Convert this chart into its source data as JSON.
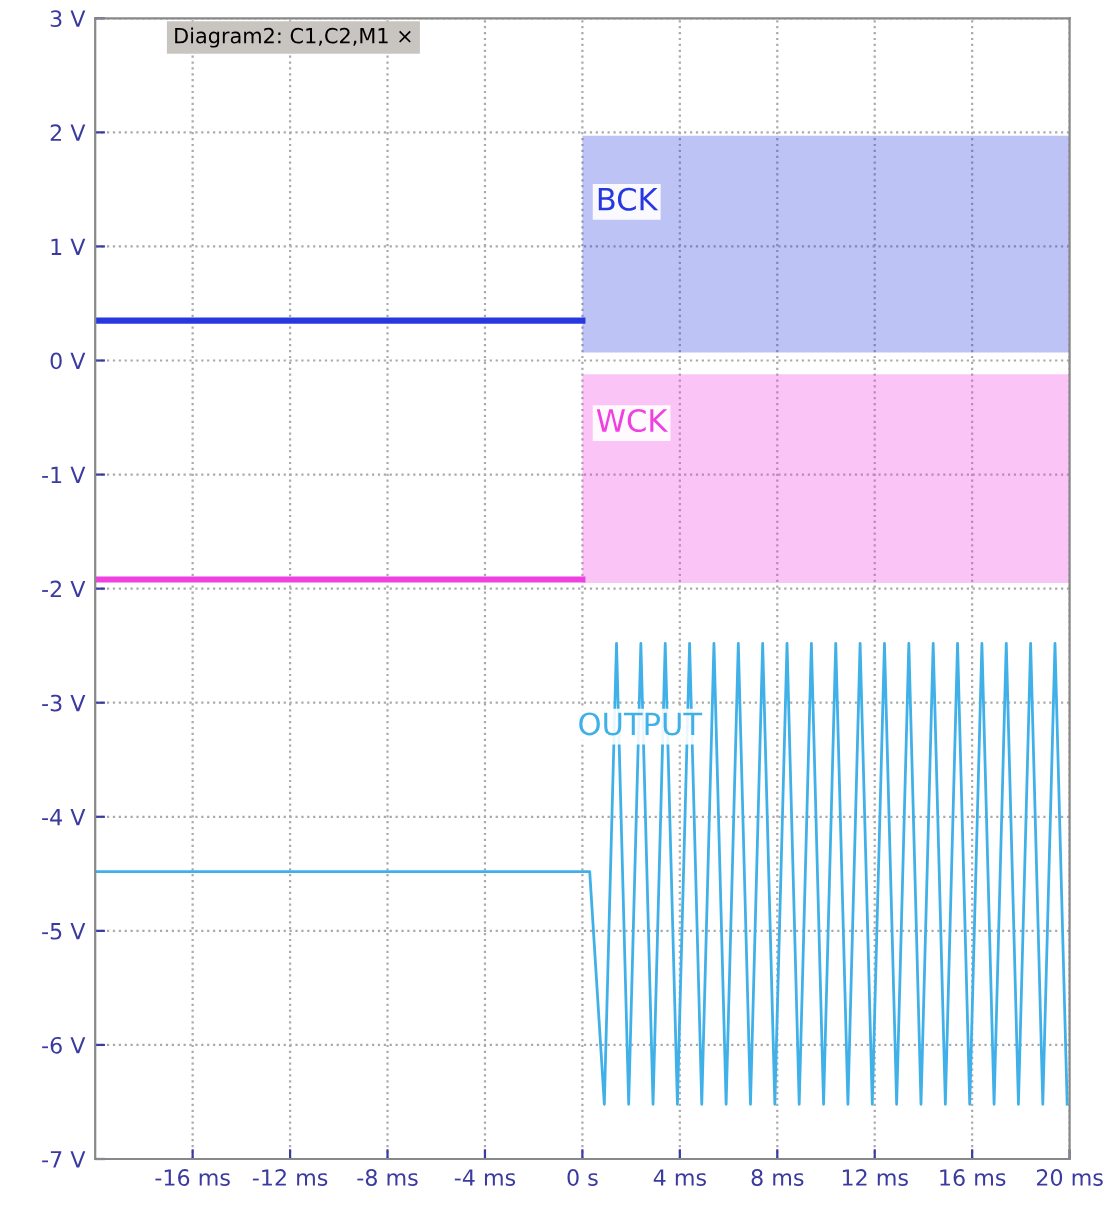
{
  "chart_data": {
    "type": "line",
    "annotations": [
      "Diagram2: C1,C2,M1 ×"
    ],
    "xlim": [
      -20,
      20
    ],
    "ylim": [
      -7,
      3
    ],
    "xticks": [
      {
        "value": -16,
        "label": "-16 ms"
      },
      {
        "value": -12,
        "label": "-12 ms"
      },
      {
        "value": -8,
        "label": "-8 ms"
      },
      {
        "value": -4,
        "label": "-4 ms"
      },
      {
        "value": 0,
        "label": "0 s"
      },
      {
        "value": 4,
        "label": "4 ms"
      },
      {
        "value": 8,
        "label": "8 ms"
      },
      {
        "value": 12,
        "label": "12 ms"
      },
      {
        "value": 16,
        "label": "16 ms"
      },
      {
        "value": 20,
        "label": "20 ms"
      }
    ],
    "yticks": [
      {
        "value": 3,
        "label": "3 V"
      },
      {
        "value": 2,
        "label": "2 V"
      },
      {
        "value": 1,
        "label": "1 V"
      },
      {
        "value": 0,
        "label": "0 V"
      },
      {
        "value": -1,
        "label": "-1 V"
      },
      {
        "value": -2,
        "label": "-2 V"
      },
      {
        "value": -3,
        "label": "-3 V"
      },
      {
        "value": -4,
        "label": "-4 V"
      },
      {
        "value": -5,
        "label": "-5 V"
      },
      {
        "value": -6,
        "label": "-6 V"
      },
      {
        "value": -7,
        "label": "-7 V"
      }
    ],
    "grid": true,
    "legend": false,
    "marker": "none",
    "line_style": "solid",
    "series": [
      {
        "name": "BCK",
        "color": "#2838e0",
        "x": [
          -20,
          0,
          0,
          20
        ],
        "values": [
          0.35,
          0.35,
          null,
          null
        ],
        "lower": [
          null,
          null,
          0.07,
          0.07
        ],
        "upper": [
          null,
          null,
          1.97,
          1.97
        ]
      },
      {
        "name": "WCK",
        "color": "#f040e0",
        "x": [
          -20,
          0,
          0,
          20
        ],
        "values": [
          -1.92,
          -1.92,
          null,
          null
        ],
        "lower": [
          null,
          null,
          -1.95,
          -1.95
        ],
        "upper": [
          null,
          null,
          -0.12,
          -0.12
        ]
      },
      {
        "name": "OUTPUT",
        "color": "#40b0e8",
        "x": [
          -20,
          0.3,
          0.9,
          1.4,
          1.9,
          2.4,
          2.9,
          3.4,
          3.9,
          4.4,
          4.9,
          5.4,
          5.9,
          6.4,
          6.9,
          7.4,
          7.9,
          8.4,
          8.9,
          9.4,
          9.9,
          10.4,
          10.9,
          11.4,
          11.9,
          12.4,
          12.9,
          13.4,
          13.9,
          14.4,
          14.9,
          15.4,
          15.9,
          16.4,
          16.9,
          17.4,
          17.9,
          18.4,
          18.9,
          19.4,
          19.9
        ],
        "values": [
          -4.48,
          -4.48,
          -6.52,
          -2.48,
          -6.52,
          -2.48,
          -6.52,
          -2.48,
          -6.52,
          -2.48,
          -6.52,
          -2.48,
          -6.52,
          -2.48,
          -6.52,
          -2.48,
          -6.52,
          -2.48,
          -6.52,
          -2.48,
          -6.52,
          -2.48,
          -6.52,
          -2.48,
          -6.52,
          -2.48,
          -6.52,
          -2.48,
          -6.52,
          -2.48,
          -6.52,
          -2.48,
          -6.52,
          -2.48,
          -6.52,
          -2.48,
          -6.52,
          -2.48,
          -6.52,
          -2.48,
          -6.52
        ]
      }
    ]
  }
}
